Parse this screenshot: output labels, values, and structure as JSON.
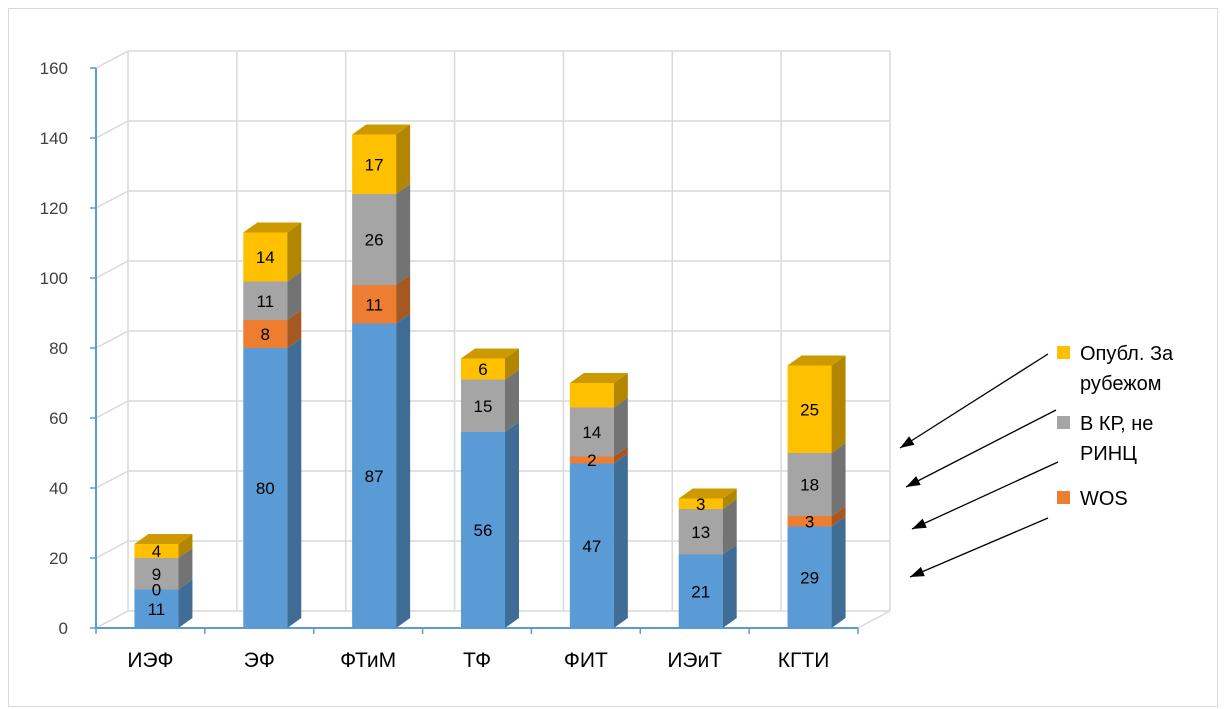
{
  "chart_data": {
    "type": "bar",
    "stacked": true,
    "style": "3d",
    "categories": [
      "ИЭФ",
      "ЭФ",
      "ФТиМ",
      "ТФ",
      "ФИТ",
      "ИЭиТ",
      "КГТИ"
    ],
    "series": [
      {
        "name": "",
        "color": "#5b9bd5",
        "values": [
          11,
          80,
          87,
          56,
          47,
          21,
          29
        ],
        "labels": [
          "11",
          "80",
          "87",
          "56",
          "47",
          "21",
          "29"
        ]
      },
      {
        "name": "WOS",
        "color": "#ed7d31",
        "values": [
          0,
          8,
          11,
          0,
          2,
          0,
          3
        ],
        "labels": [
          "0",
          "8",
          "11",
          "",
          "2",
          "",
          "3"
        ]
      },
      {
        "name": "В КР, не РИНЦ",
        "color": "#a5a5a5",
        "values": [
          9,
          11,
          26,
          15,
          14,
          13,
          18
        ],
        "labels": [
          "9",
          "11",
          "26",
          "15",
          "14",
          "13",
          "18"
        ]
      },
      {
        "name": "Опубл. За рубежом",
        "color": "#ffc000",
        "values": [
          4,
          14,
          17,
          6,
          7,
          3,
          25
        ],
        "labels": [
          "4",
          "14",
          "17",
          "6",
          "",
          "3",
          "25"
        ]
      }
    ],
    "yticks": [
      "0",
      "20",
      "40",
      "60",
      "80",
      "100",
      "120",
      "140",
      "160"
    ],
    "ylim": [
      0,
      160
    ],
    "grid": true,
    "legend": "right",
    "legend_entries": [
      {
        "lines": [
          "Опубл. За",
          "рубежом"
        ],
        "color": "#ffc000"
      },
      {
        "lines": [
          "В КР, не",
          "РИНЦ"
        ],
        "color": "#a5a5a5"
      },
      {
        "lines": [
          "WOS"
        ],
        "color": "#ed7d31"
      }
    ],
    "title": "",
    "xlabel": "",
    "ylabel": ""
  }
}
